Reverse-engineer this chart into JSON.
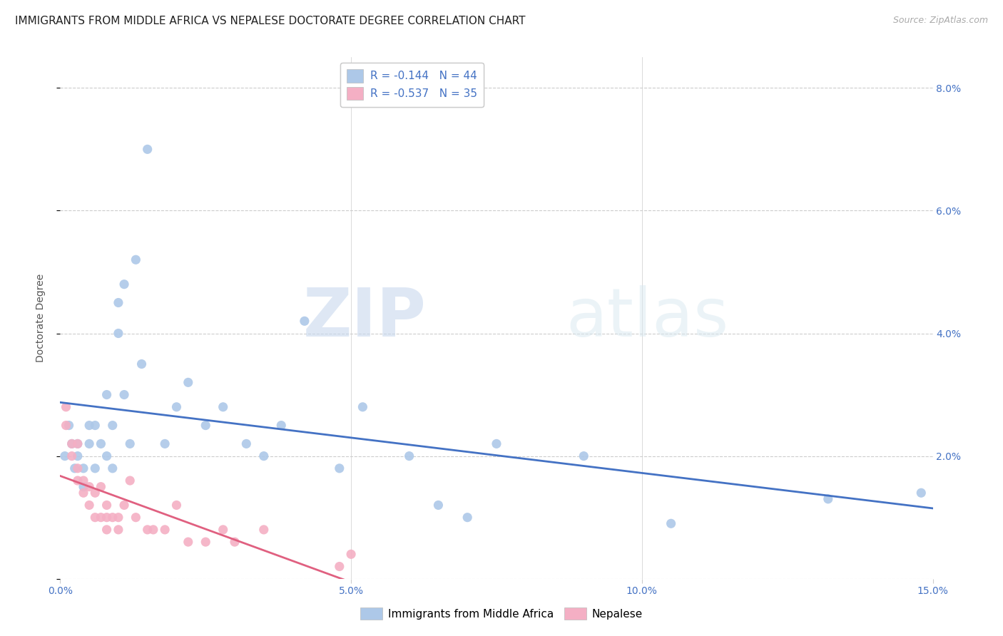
{
  "title": "IMMIGRANTS FROM MIDDLE AFRICA VS NEPALESE DOCTORATE DEGREE CORRELATION CHART",
  "source": "Source: ZipAtlas.com",
  "ylabel": "Doctorate Degree",
  "xlim": [
    0,
    0.15
  ],
  "ylim": [
    0,
    0.085
  ],
  "xticks": [
    0.0,
    0.05,
    0.1,
    0.15
  ],
  "xtick_labels": [
    "0.0%",
    "5.0%",
    "10.0%",
    "15.0%"
  ],
  "yticks": [
    0.0,
    0.02,
    0.04,
    0.06,
    0.08
  ],
  "ytick_labels": [
    "",
    "2.0%",
    "4.0%",
    "6.0%",
    "8.0%"
  ],
  "blue_R": "-0.144",
  "blue_N": "44",
  "pink_R": "-0.537",
  "pink_N": "35",
  "blue_color": "#adc8e8",
  "blue_line_color": "#4472c4",
  "pink_color": "#f4afc4",
  "pink_line_color": "#e06080",
  "legend_label_blue": "Immigrants from Middle Africa",
  "legend_label_pink": "Nepalese",
  "blue_x": [
    0.0008,
    0.0015,
    0.002,
    0.0025,
    0.003,
    0.003,
    0.004,
    0.004,
    0.005,
    0.005,
    0.006,
    0.006,
    0.007,
    0.008,
    0.008,
    0.009,
    0.009,
    0.01,
    0.01,
    0.011,
    0.011,
    0.012,
    0.013,
    0.014,
    0.015,
    0.018,
    0.02,
    0.022,
    0.025,
    0.028,
    0.032,
    0.035,
    0.038,
    0.042,
    0.048,
    0.052,
    0.06,
    0.065,
    0.07,
    0.075,
    0.09,
    0.105,
    0.132,
    0.148
  ],
  "blue_y": [
    0.02,
    0.025,
    0.022,
    0.018,
    0.022,
    0.02,
    0.018,
    0.015,
    0.022,
    0.025,
    0.018,
    0.025,
    0.022,
    0.03,
    0.02,
    0.025,
    0.018,
    0.04,
    0.045,
    0.048,
    0.03,
    0.022,
    0.052,
    0.035,
    0.07,
    0.022,
    0.028,
    0.032,
    0.025,
    0.028,
    0.022,
    0.02,
    0.025,
    0.042,
    0.018,
    0.028,
    0.02,
    0.012,
    0.01,
    0.022,
    0.02,
    0.009,
    0.013,
    0.014
  ],
  "pink_x": [
    0.001,
    0.001,
    0.002,
    0.002,
    0.003,
    0.003,
    0.003,
    0.004,
    0.004,
    0.005,
    0.005,
    0.006,
    0.006,
    0.007,
    0.007,
    0.008,
    0.008,
    0.008,
    0.009,
    0.01,
    0.01,
    0.011,
    0.012,
    0.013,
    0.015,
    0.016,
    0.018,
    0.02,
    0.022,
    0.025,
    0.028,
    0.03,
    0.035,
    0.048,
    0.05
  ],
  "pink_y": [
    0.028,
    0.025,
    0.022,
    0.02,
    0.018,
    0.016,
    0.022,
    0.016,
    0.014,
    0.015,
    0.012,
    0.014,
    0.01,
    0.015,
    0.01,
    0.012,
    0.01,
    0.008,
    0.01,
    0.01,
    0.008,
    0.012,
    0.016,
    0.01,
    0.008,
    0.008,
    0.008,
    0.012,
    0.006,
    0.006,
    0.008,
    0.006,
    0.008,
    0.002,
    0.004
  ],
  "watermark_zip": "ZIP",
  "watermark_atlas": "atlas",
  "title_fontsize": 11,
  "axis_label_fontsize": 10,
  "tick_fontsize": 10,
  "legend_fontsize": 11,
  "source_fontsize": 9,
  "text_color": "#555555",
  "tick_color": "#4472c4",
  "grid_color": "#cccccc"
}
